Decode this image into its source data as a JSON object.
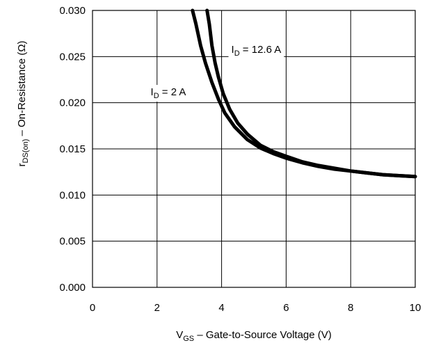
{
  "chart_data": {
    "type": "line",
    "xlabel": {
      "main": "V",
      "sub": "GS",
      "rest": " – Gate-to-Source Voltage (V)"
    },
    "ylabel": {
      "main": "r",
      "sub": "DS(on)",
      "rest": "  –  On-Resistance (Ω)"
    },
    "xlim": [
      0,
      10
    ],
    "ylim": [
      0.0,
      0.03
    ],
    "xticks": [
      {
        "value": 0,
        "label": "0"
      },
      {
        "value": 2,
        "label": "2"
      },
      {
        "value": 4,
        "label": "4"
      },
      {
        "value": 6,
        "label": "6"
      },
      {
        "value": 8,
        "label": "8"
      },
      {
        "value": 10,
        "label": "10"
      }
    ],
    "yticks": [
      {
        "value": 0.0,
        "label": "0.000"
      },
      {
        "value": 0.005,
        "label": "0.005"
      },
      {
        "value": 0.01,
        "label": "0.010"
      },
      {
        "value": 0.015,
        "label": "0.015"
      },
      {
        "value": 0.02,
        "label": "0.020"
      },
      {
        "value": 0.025,
        "label": "0.025"
      },
      {
        "value": 0.03,
        "label": "0.030"
      }
    ],
    "grid": true,
    "series": [
      {
        "name": {
          "main": "I",
          "sub": "D",
          "rest": " = 2 A"
        },
        "label_at": {
          "x": 1.8,
          "y": 0.0208
        },
        "points": [
          [
            3.1,
            0.03
          ],
          [
            3.2,
            0.0286
          ],
          [
            3.35,
            0.0262
          ],
          [
            3.5,
            0.0243
          ],
          [
            3.7,
            0.0222
          ],
          [
            3.9,
            0.0204
          ],
          [
            4.1,
            0.0189
          ],
          [
            4.4,
            0.0174
          ],
          [
            4.8,
            0.016
          ],
          [
            5.2,
            0.0151
          ],
          [
            5.6,
            0.0145
          ],
          [
            6.0,
            0.014
          ],
          [
            6.5,
            0.0135
          ],
          [
            7.0,
            0.0131
          ],
          [
            7.5,
            0.0128
          ],
          [
            8.0,
            0.0126
          ],
          [
            8.5,
            0.0124
          ],
          [
            9.0,
            0.0122
          ],
          [
            9.5,
            0.0121
          ],
          [
            10.0,
            0.012
          ]
        ]
      },
      {
        "name": {
          "main": "I",
          "sub": "D",
          "rest": " = 12.6 A"
        },
        "label_at": {
          "x": 4.3,
          "y": 0.0254
        },
        "points": [
          [
            3.55,
            0.03
          ],
          [
            3.62,
            0.0285
          ],
          [
            3.7,
            0.0262
          ],
          [
            3.8,
            0.0243
          ],
          [
            3.9,
            0.0228
          ],
          [
            4.05,
            0.021
          ],
          [
            4.25,
            0.0193
          ],
          [
            4.5,
            0.0178
          ],
          [
            4.8,
            0.0166
          ],
          [
            5.2,
            0.0154
          ],
          [
            5.6,
            0.0147
          ],
          [
            6.0,
            0.0142
          ],
          [
            6.5,
            0.0136
          ],
          [
            7.0,
            0.0132
          ],
          [
            7.5,
            0.0129
          ],
          [
            8.0,
            0.0126
          ],
          [
            8.5,
            0.0124
          ],
          [
            9.0,
            0.0122
          ],
          [
            9.5,
            0.0121
          ],
          [
            10.0,
            0.012
          ]
        ]
      }
    ]
  }
}
